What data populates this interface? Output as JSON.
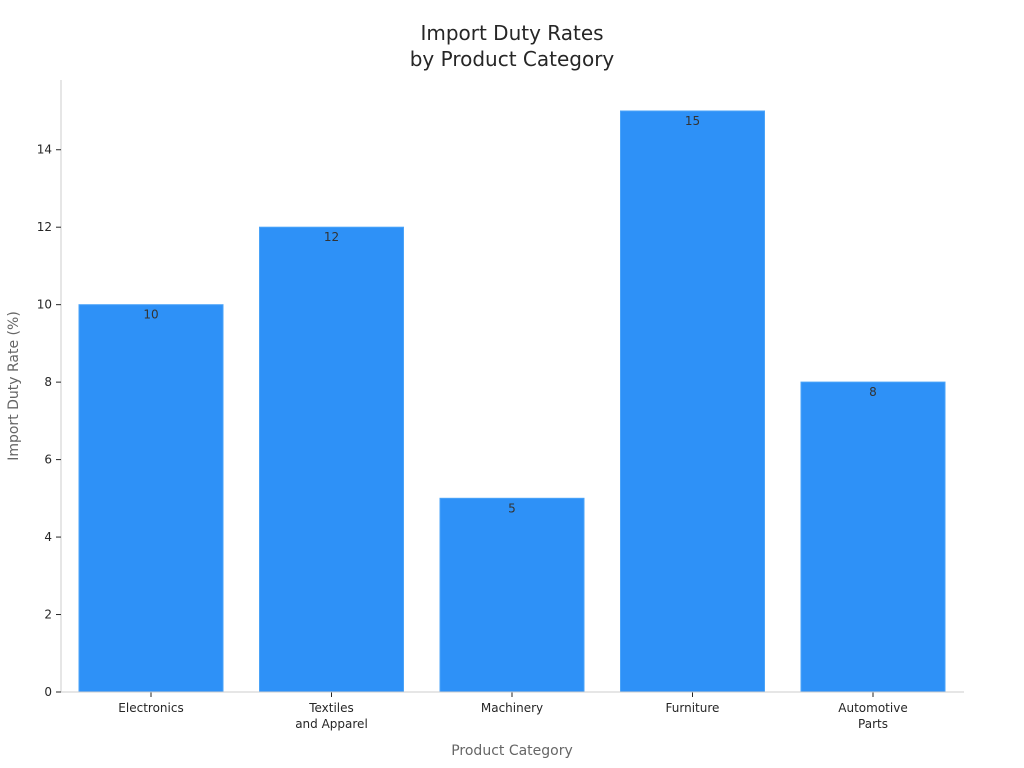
{
  "chart_data": {
    "type": "bar",
    "title": [
      "Import Duty Rates",
      "by Product Category"
    ],
    "xlabel": "Product Category",
    "ylabel": "Import Duty Rate (%)",
    "categories": [
      [
        "Electronics"
      ],
      [
        "Textiles",
        "and Apparel"
      ],
      [
        "Machinery"
      ],
      [
        "Furniture"
      ],
      [
        "Automotive",
        "Parts"
      ]
    ],
    "values": [
      10,
      12,
      5,
      15,
      8
    ],
    "data_labels": [
      "10",
      "12",
      "5",
      "15",
      "8"
    ],
    "yticks": [
      0,
      2,
      4,
      6,
      8,
      10,
      12,
      14
    ],
    "ylim": [
      0,
      15.75
    ],
    "grid": false,
    "legend": "none",
    "colors": {
      "bar": "#2e91f7",
      "bar_edge": "#4aa3f8",
      "axis": "#cccccc",
      "tick": "#262626"
    }
  }
}
